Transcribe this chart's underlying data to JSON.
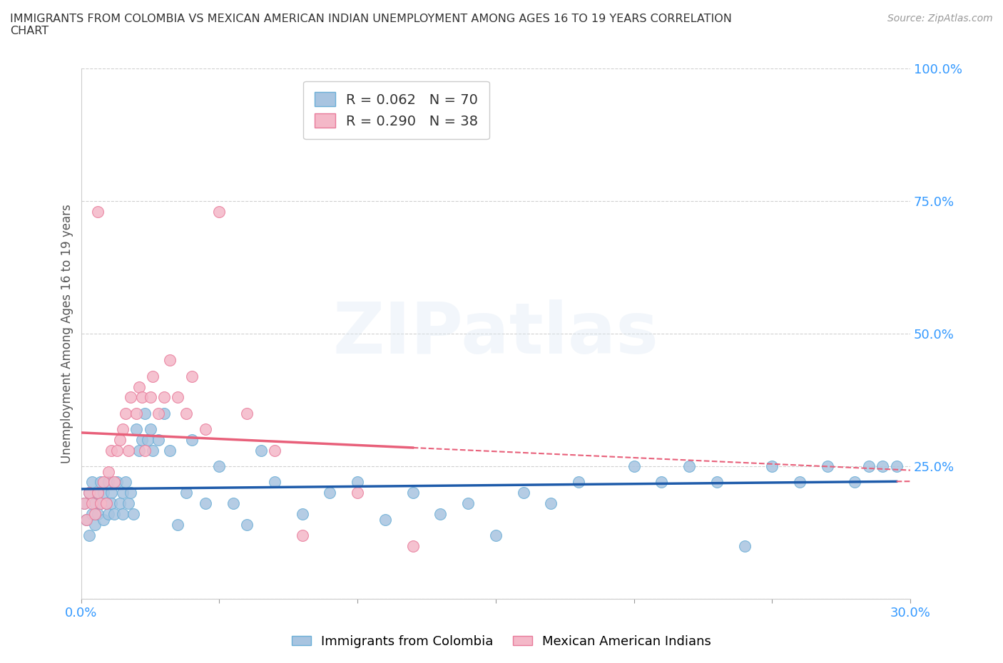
{
  "title": "IMMIGRANTS FROM COLOMBIA VS MEXICAN AMERICAN INDIAN UNEMPLOYMENT AMONG AGES 16 TO 19 YEARS CORRELATION\nCHART",
  "source": "Source: ZipAtlas.com",
  "ylabel": "Unemployment Among Ages 16 to 19 years",
  "xlim": [
    0.0,
    0.3
  ],
  "ylim": [
    0.0,
    1.0
  ],
  "xticks": [
    0.0,
    0.05,
    0.1,
    0.15,
    0.2,
    0.25,
    0.3
  ],
  "xticklabels": [
    "0.0%",
    "",
    "",
    "",
    "",
    "",
    "30.0%"
  ],
  "yticks": [
    0.0,
    0.25,
    0.5,
    0.75,
    1.0
  ],
  "yticklabels_right": [
    "",
    "25.0%",
    "50.0%",
    "75.0%",
    "100.0%"
  ],
  "blue_color": "#a8c4e0",
  "blue_edge": "#6aaed6",
  "pink_color": "#f4b8c8",
  "pink_edge": "#e87a9a",
  "blue_line_color": "#1e5baa",
  "pink_line_color": "#e8607a",
  "R_blue": 0.062,
  "N_blue": 70,
  "R_pink": 0.29,
  "N_pink": 38,
  "legend_label_blue": "Immigrants from Colombia",
  "legend_label_pink": "Mexican American Indians",
  "watermark": "ZIPatlas",
  "blue_scatter_x": [
    0.001,
    0.002,
    0.003,
    0.003,
    0.004,
    0.004,
    0.005,
    0.005,
    0.006,
    0.006,
    0.007,
    0.007,
    0.008,
    0.008,
    0.009,
    0.01,
    0.01,
    0.011,
    0.011,
    0.012,
    0.013,
    0.014,
    0.015,
    0.015,
    0.016,
    0.017,
    0.018,
    0.019,
    0.02,
    0.021,
    0.022,
    0.023,
    0.024,
    0.025,
    0.026,
    0.028,
    0.03,
    0.032,
    0.035,
    0.038,
    0.04,
    0.045,
    0.05,
    0.055,
    0.06,
    0.065,
    0.07,
    0.08,
    0.09,
    0.1,
    0.11,
    0.12,
    0.13,
    0.14,
    0.15,
    0.16,
    0.17,
    0.18,
    0.2,
    0.21,
    0.22,
    0.23,
    0.24,
    0.25,
    0.26,
    0.27,
    0.28,
    0.285,
    0.29,
    0.295
  ],
  "blue_scatter_y": [
    0.18,
    0.15,
    0.2,
    0.12,
    0.16,
    0.22,
    0.18,
    0.14,
    0.2,
    0.16,
    0.18,
    0.22,
    0.15,
    0.2,
    0.18,
    0.22,
    0.16,
    0.2,
    0.18,
    0.16,
    0.22,
    0.18,
    0.2,
    0.16,
    0.22,
    0.18,
    0.2,
    0.16,
    0.32,
    0.28,
    0.3,
    0.35,
    0.3,
    0.32,
    0.28,
    0.3,
    0.35,
    0.28,
    0.14,
    0.2,
    0.3,
    0.18,
    0.25,
    0.18,
    0.14,
    0.28,
    0.22,
    0.16,
    0.2,
    0.22,
    0.15,
    0.2,
    0.16,
    0.18,
    0.12,
    0.2,
    0.18,
    0.22,
    0.25,
    0.22,
    0.25,
    0.22,
    0.1,
    0.25,
    0.22,
    0.25,
    0.22,
    0.25,
    0.25,
    0.25
  ],
  "pink_scatter_x": [
    0.001,
    0.002,
    0.003,
    0.004,
    0.005,
    0.006,
    0.006,
    0.007,
    0.008,
    0.009,
    0.01,
    0.011,
    0.012,
    0.013,
    0.014,
    0.015,
    0.016,
    0.017,
    0.018,
    0.02,
    0.021,
    0.022,
    0.023,
    0.025,
    0.026,
    0.028,
    0.03,
    0.032,
    0.035,
    0.038,
    0.04,
    0.045,
    0.05,
    0.06,
    0.07,
    0.08,
    0.1,
    0.12
  ],
  "pink_scatter_y": [
    0.18,
    0.15,
    0.2,
    0.18,
    0.16,
    0.73,
    0.2,
    0.18,
    0.22,
    0.18,
    0.24,
    0.28,
    0.22,
    0.28,
    0.3,
    0.32,
    0.35,
    0.28,
    0.38,
    0.35,
    0.4,
    0.38,
    0.28,
    0.38,
    0.42,
    0.35,
    0.38,
    0.45,
    0.38,
    0.35,
    0.42,
    0.32,
    0.73,
    0.35,
    0.28,
    0.12,
    0.2,
    0.1
  ]
}
